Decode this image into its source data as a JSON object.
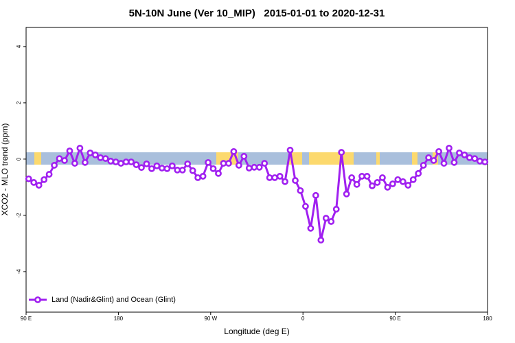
{
  "chart_data": {
    "type": "line",
    "title": "5N-10N June (Ver 10_MIP)   2015-01-01 to 2020-12-31",
    "xlabel": "Longitude (deg E)",
    "ylabel": "XCO2 - MLO trend (ppm)",
    "xlim": [
      90,
      540
    ],
    "ylim": [
      -5.44,
      4.68
    ],
    "xticks": [
      {
        "value": 90,
        "label": "90 E"
      },
      180,
      {
        "value": 270,
        "label": "90 W"
      },
      {
        "value": 360,
        "label": "0"
      },
      {
        "value": 450,
        "label": "90 E"
      },
      {
        "value": 540,
        "label": "180"
      }
    ],
    "yticks": [
      4,
      2,
      0,
      -2,
      -4
    ],
    "legend": "bottom-left",
    "x": [
      92.5,
      97.5,
      102.5,
      107.5,
      112.5,
      117.5,
      122.5,
      127.5,
      132.5,
      137.5,
      142.5,
      147.5,
      152.5,
      157.5,
      162.5,
      167.5,
      172.5,
      177.5,
      182.5,
      187.5,
      192.5,
      197.5,
      202.5,
      207.5,
      212.5,
      217.5,
      222.5,
      227.5,
      232.5,
      237.5,
      242.5,
      247.5,
      252.5,
      257.5,
      262.5,
      267.5,
      272.5,
      277.5,
      282.5,
      287.5,
      292.5,
      297.5,
      302.5,
      307.5,
      312.5,
      317.5,
      322.5,
      327.5,
      332.5,
      337.5,
      342.5,
      347.5,
      352.5,
      357.5,
      362.5,
      367.5,
      372.5,
      377.5,
      382.5,
      387.5,
      392.5,
      397.5,
      402.5,
      407.5,
      412.5,
      417.5,
      422.5,
      427.5,
      432.5,
      437.5,
      442.5,
      447.5,
      452.5,
      457.5,
      462.5,
      467.5,
      472.5,
      477.5,
      482.5,
      487.5,
      492.5,
      497.5,
      502.5,
      507.5,
      512.5,
      517.5,
      522.5,
      527.5,
      532.5,
      537.5
    ],
    "series": [
      {
        "name": "Land (Nadir&Glint) and Ocean (Glint)",
        "color": "#a020f0",
        "values": [
          -0.7,
          -0.83,
          -0.93,
          -0.73,
          -0.54,
          -0.22,
          0.02,
          -0.05,
          0.29,
          -0.15,
          0.39,
          -0.12,
          0.22,
          0.15,
          0.05,
          0.02,
          -0.07,
          -0.1,
          -0.15,
          -0.1,
          -0.1,
          -0.2,
          -0.3,
          -0.17,
          -0.34,
          -0.24,
          -0.32,
          -0.34,
          -0.24,
          -0.39,
          -0.39,
          -0.17,
          -0.41,
          -0.66,
          -0.61,
          -0.12,
          -0.34,
          -0.51,
          -0.15,
          -0.15,
          0.27,
          -0.22,
          0.1,
          -0.32,
          -0.29,
          -0.29,
          -0.15,
          -0.66,
          -0.66,
          -0.61,
          -0.8,
          0.32,
          -0.76,
          -1.12,
          -1.68,
          -2.46,
          -1.29,
          -2.88,
          -2.1,
          -2.22,
          -1.78,
          0.24,
          -1.24,
          -0.66,
          -0.9,
          -0.61,
          -0.61,
          -0.95,
          -0.83,
          -0.66,
          -1.0,
          -0.88,
          -0.73,
          -0.8,
          -0.93,
          -0.73,
          -0.51,
          -0.22,
          0.05,
          -0.05,
          0.27,
          -0.15,
          0.39,
          -0.12,
          0.22,
          0.15,
          0.05,
          0.02,
          -0.07,
          -0.1
        ]
      }
    ]
  }
}
